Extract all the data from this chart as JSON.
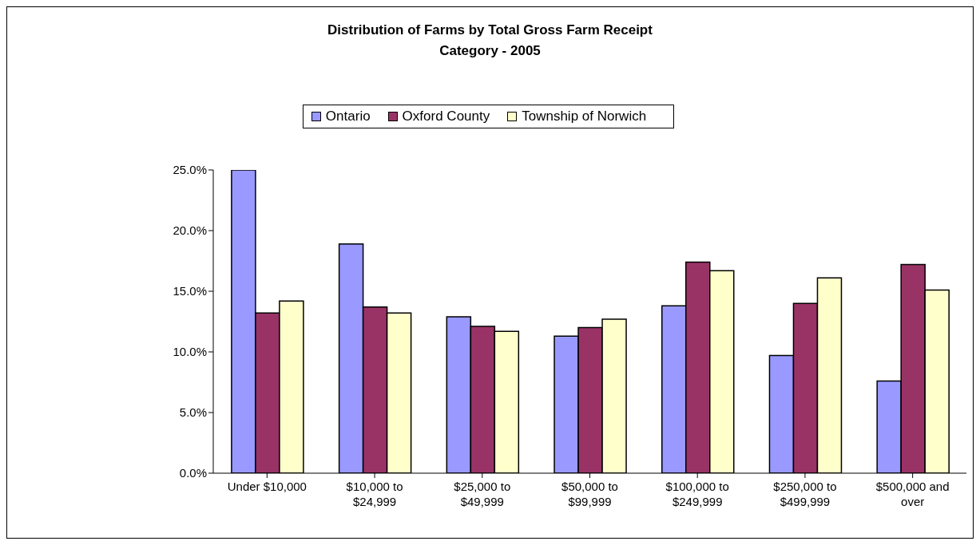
{
  "chart_data": {
    "type": "bar",
    "title": "Distribution of Farms by Total Gross Farm Receipt Category - 2005",
    "categories": [
      "Under $10,000",
      "$10,000 to $24,999",
      "$25,000 to $49,999",
      "$50,000 to $99,999",
      "$100,000 to $249,999",
      "$250,000 to $499,999",
      "$500,000 and over"
    ],
    "series": [
      {
        "name": "Ontario",
        "color": "#9999ff",
        "values": [
          25.0,
          18.9,
          12.9,
          11.3,
          13.8,
          9.7,
          7.6
        ]
      },
      {
        "name": "Oxford County",
        "color": "#993366",
        "values": [
          13.2,
          13.7,
          12.1,
          12.0,
          17.4,
          14.0,
          17.2
        ]
      },
      {
        "name": "Township of Norwich",
        "color": "#ffffcc",
        "values": [
          14.2,
          13.2,
          11.7,
          12.7,
          16.7,
          16.1,
          15.1
        ]
      }
    ],
    "ylim": [
      0,
      25
    ],
    "yticks": [
      {
        "value": 0,
        "label": "0.0%"
      },
      {
        "value": 5,
        "label": "5.0%"
      },
      {
        "value": 10,
        "label": "10.0%"
      },
      {
        "value": 15,
        "label": "15.0%"
      },
      {
        "value": 20,
        "label": "20.0%"
      },
      {
        "value": 25,
        "label": "25.0%"
      }
    ],
    "grid": false,
    "legend": "top"
  }
}
